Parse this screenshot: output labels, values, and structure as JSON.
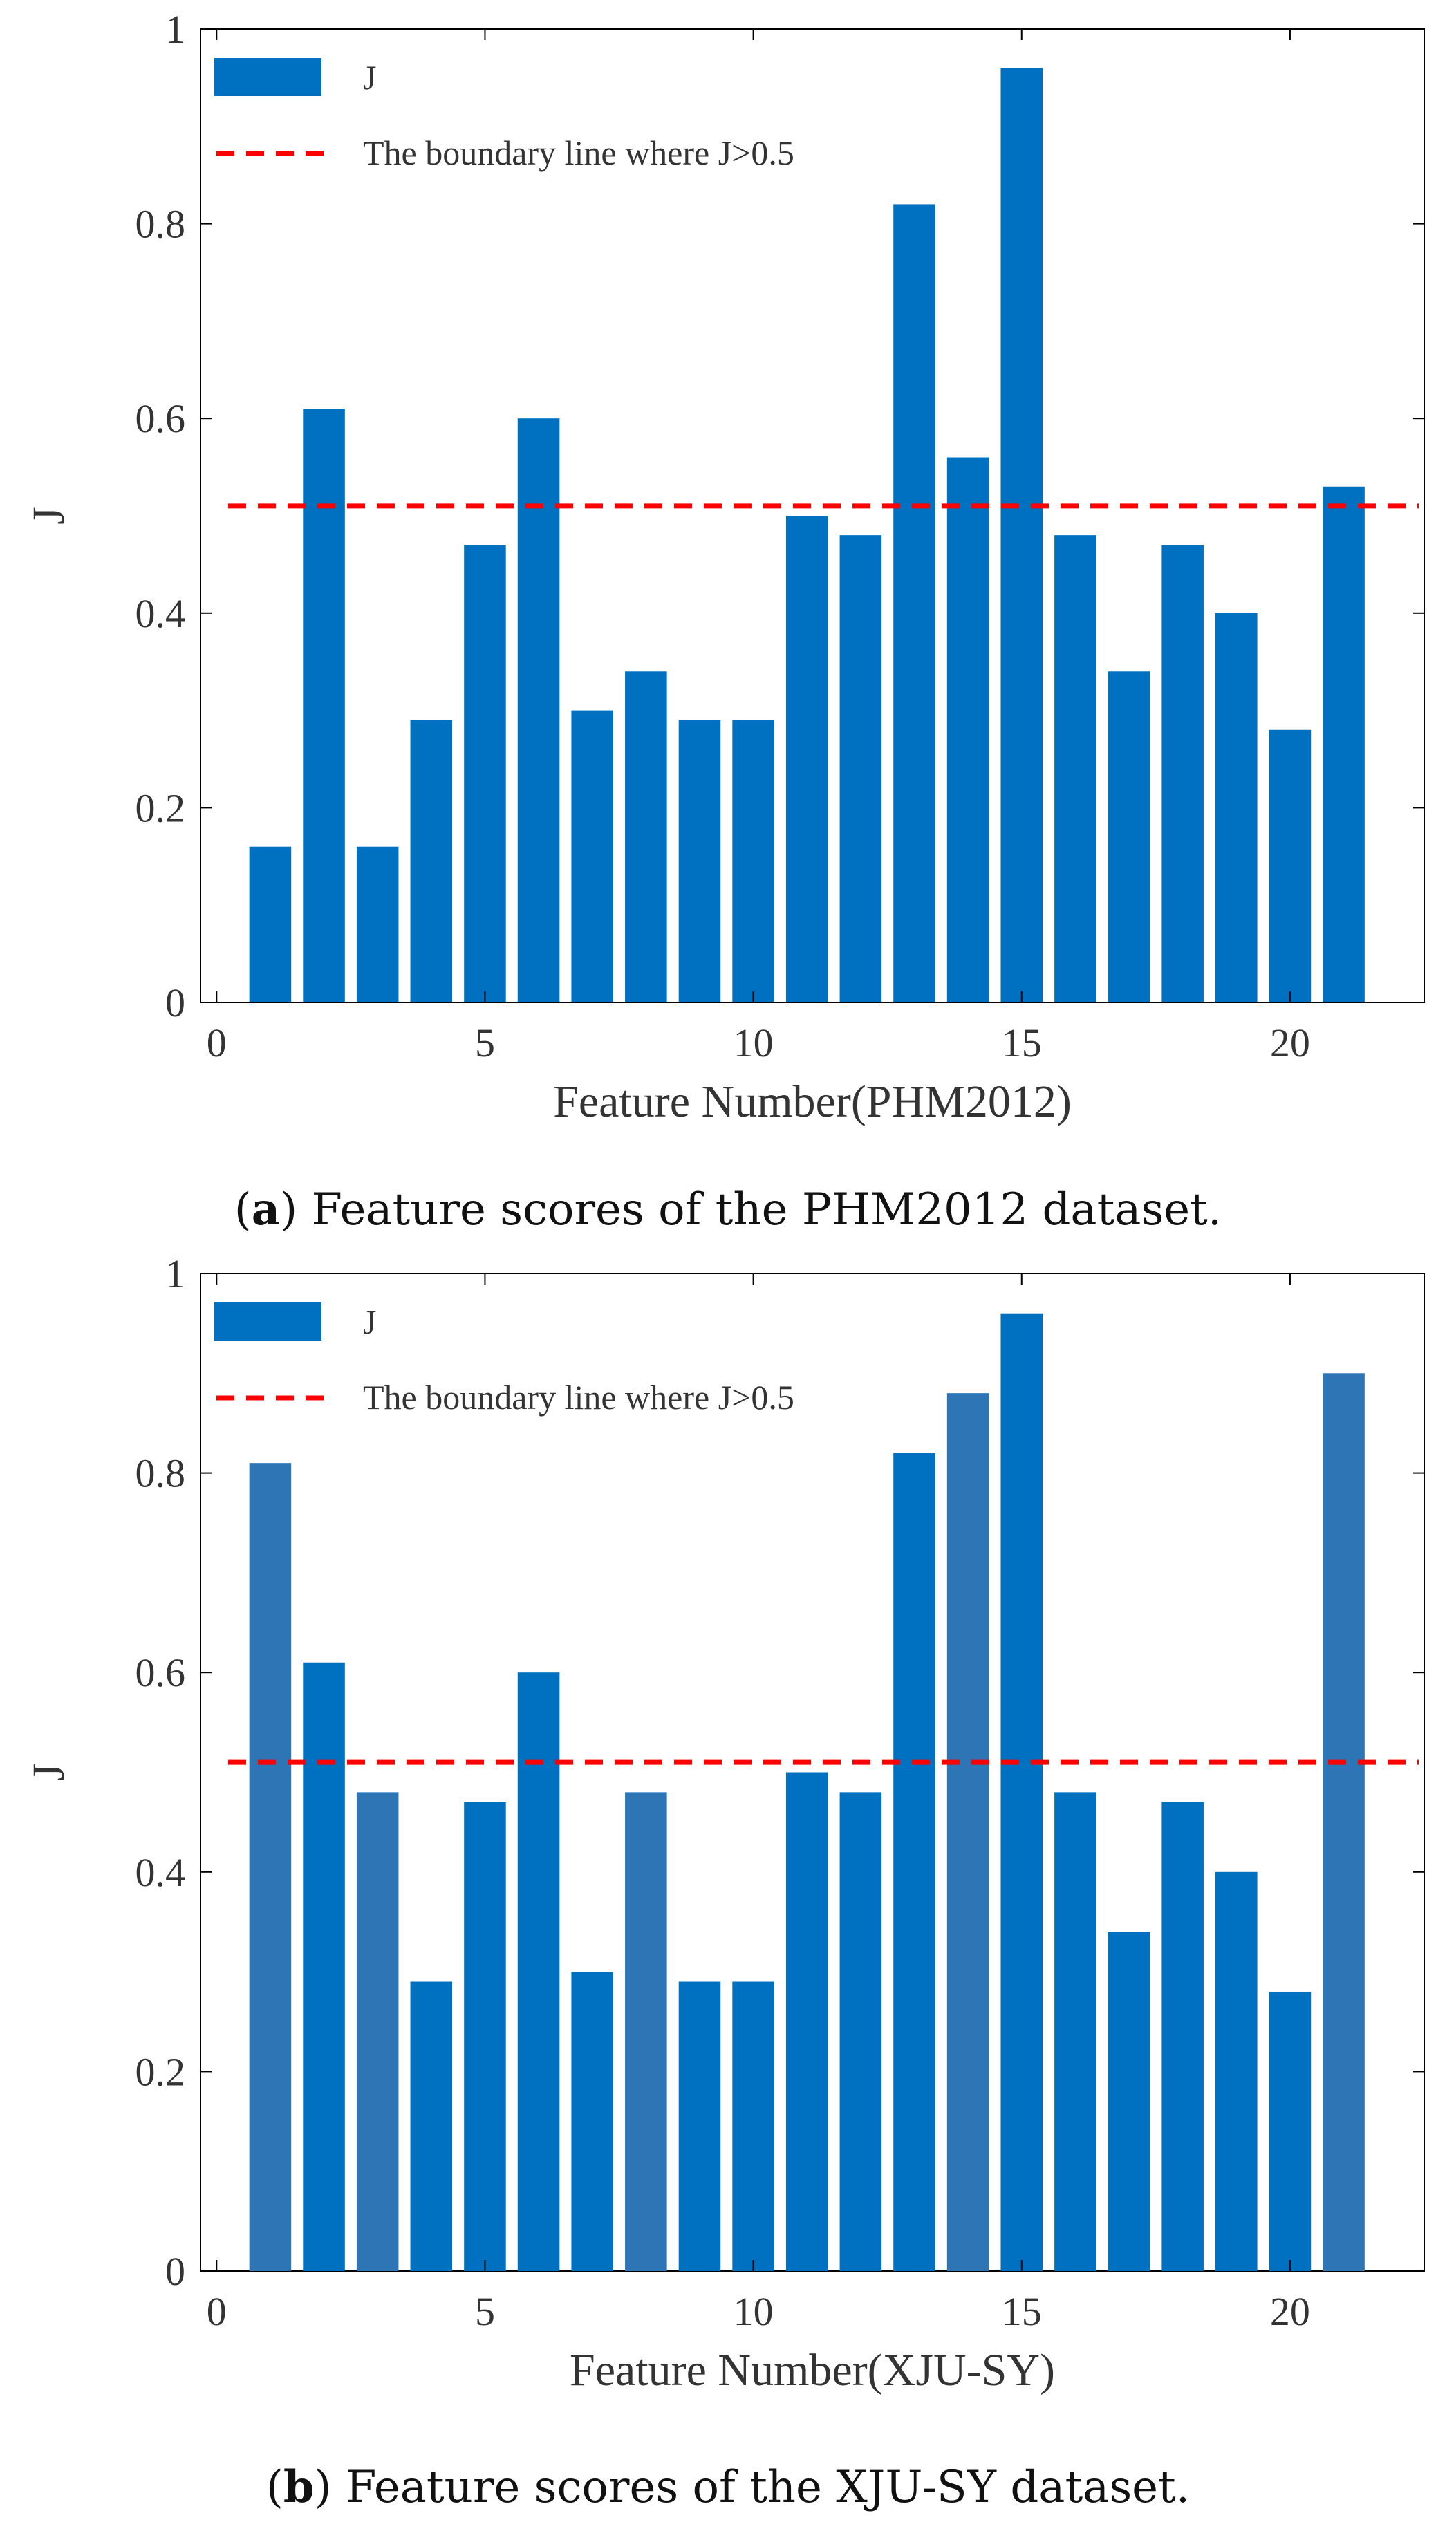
{
  "colors": {
    "bar": "#0070C0",
    "bar_alt": "#2E75B6",
    "boundary": "#FF0000",
    "axis": "#000000",
    "text": "#333333"
  },
  "chart_data": [
    {
      "type": "bar",
      "panel": "a",
      "caption_letter": "a",
      "caption_text": ") Feature scores of the PHM2012 dataset.",
      "caption_open": "(",
      "xlabel": "Feature Number(PHM2012)",
      "ylabel": "J",
      "xlim": [
        -0.3,
        22.5
      ],
      "ylim": [
        0,
        1
      ],
      "xticks": [
        0,
        5,
        10,
        15,
        20
      ],
      "yticks": [
        0,
        0.2,
        0.4,
        0.6,
        0.8,
        1
      ],
      "ytick_labels": [
        "0",
        "0.2",
        "0.4",
        "0.6",
        "0.8",
        "1"
      ],
      "categories": [
        1,
        2,
        3,
        4,
        5,
        6,
        7,
        8,
        9,
        10,
        11,
        12,
        13,
        14,
        15,
        16,
        17,
        18,
        19,
        20,
        21
      ],
      "values": [
        0.16,
        0.61,
        0.16,
        0.29,
        0.47,
        0.6,
        0.3,
        0.34,
        0.29,
        0.29,
        0.5,
        0.48,
        0.82,
        0.56,
        0.96,
        0.48,
        0.34,
        0.47,
        0.4,
        0.28,
        0.53
      ],
      "boundary": 0.51,
      "legend": [
        {
          "label": "J",
          "kind": "bar"
        },
        {
          "label": "The boundary line where J>0.5",
          "kind": "dashed-line"
        }
      ],
      "legend_position": "top-left"
    },
    {
      "type": "bar",
      "panel": "b",
      "caption_letter": "b",
      "caption_text": ") Feature scores of the XJU-SY dataset.",
      "caption_open": "(",
      "xlabel": "Feature Number(XJU-SY)",
      "ylabel": "J",
      "xlim": [
        -0.3,
        22.5
      ],
      "ylim": [
        0,
        1
      ],
      "xticks": [
        0,
        5,
        10,
        15,
        20
      ],
      "yticks": [
        0,
        0.2,
        0.4,
        0.6,
        0.8,
        1
      ],
      "ytick_labels": [
        "0",
        "0.2",
        "0.4",
        "0.6",
        "0.8",
        "1"
      ],
      "categories": [
        1,
        2,
        3,
        4,
        5,
        6,
        7,
        8,
        9,
        10,
        11,
        12,
        13,
        14,
        15,
        16,
        17,
        18,
        19,
        20,
        21
      ],
      "values": [
        0.81,
        0.61,
        0.48,
        0.29,
        0.47,
        0.6,
        0.3,
        0.48,
        0.29,
        0.29,
        0.5,
        0.48,
        0.82,
        0.88,
        0.96,
        0.48,
        0.34,
        0.47,
        0.4,
        0.28,
        0.9
      ],
      "alt_color_bars": [
        1,
        3,
        8,
        14,
        21
      ],
      "boundary": 0.51,
      "legend": [
        {
          "label": "J",
          "kind": "bar"
        },
        {
          "label": "The boundary line where J>0.5",
          "kind": "dashed-line"
        }
      ],
      "legend_position": "top-left"
    }
  ]
}
